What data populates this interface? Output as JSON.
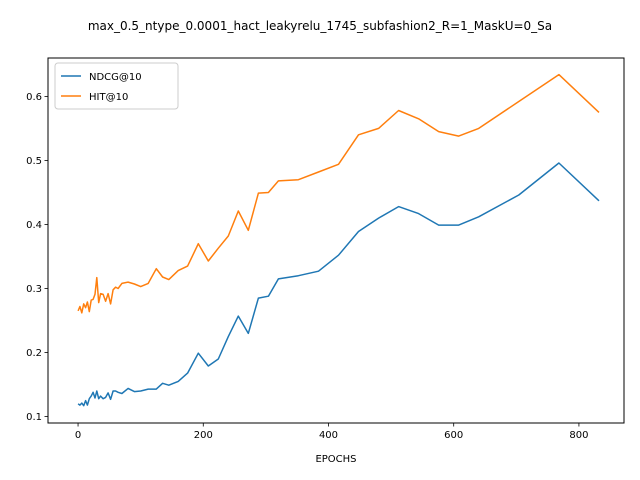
{
  "chart_data": {
    "type": "line",
    "title": "max_0.5_ntype_0.0001_hact_leakyrelu_1745_subfashion2_R=1_MaskU=0_Sa",
    "xlabel": "EPOCHS",
    "ylabel": "",
    "xlim": [
      -48,
      872
    ],
    "ylim": [
      0.09,
      0.66
    ],
    "xticks": [
      0,
      200,
      400,
      600,
      800
    ],
    "yticks": [
      0.1,
      0.2,
      0.3,
      0.4,
      0.5,
      0.6
    ],
    "grid": false,
    "legend_position": "top-left",
    "series": [
      {
        "name": "NDCG@10",
        "color": "#1f77b4",
        "x": [
          0,
          3,
          6,
          9,
          12,
          15,
          18,
          21,
          24,
          27,
          30,
          33,
          36,
          40,
          44,
          48,
          52,
          56,
          60,
          64,
          70,
          80,
          90,
          100,
          112,
          125,
          135,
          145,
          160,
          175,
          192,
          208,
          224,
          240,
          256,
          272,
          288,
          304,
          320,
          352,
          384,
          416,
          448,
          480,
          512,
          544,
          576,
          608,
          640,
          704,
          768,
          832
        ],
        "y": [
          0.12,
          0.118,
          0.121,
          0.117,
          0.125,
          0.118,
          0.128,
          0.132,
          0.138,
          0.129,
          0.14,
          0.128,
          0.132,
          0.128,
          0.13,
          0.137,
          0.127,
          0.14,
          0.14,
          0.138,
          0.136,
          0.144,
          0.139,
          0.14,
          0.143,
          0.143,
          0.152,
          0.149,
          0.155,
          0.168,
          0.199,
          0.179,
          0.19,
          0.225,
          0.257,
          0.23,
          0.285,
          0.288,
          0.315,
          0.32,
          0.327,
          0.352,
          0.389,
          0.41,
          0.428,
          0.417,
          0.399,
          0.399,
          0.412,
          0.446,
          0.496,
          0.437
        ]
      },
      {
        "name": "HIT@10",
        "color": "#ff7f0e",
        "x": [
          0,
          3,
          6,
          9,
          12,
          15,
          18,
          21,
          24,
          27,
          30,
          33,
          36,
          40,
          44,
          48,
          52,
          56,
          60,
          64,
          70,
          80,
          90,
          100,
          112,
          125,
          135,
          145,
          160,
          175,
          192,
          208,
          224,
          240,
          256,
          272,
          288,
          304,
          320,
          352,
          384,
          416,
          448,
          480,
          512,
          544,
          576,
          608,
          640,
          704,
          768,
          832
        ],
        "y": [
          0.265,
          0.272,
          0.262,
          0.276,
          0.27,
          0.279,
          0.264,
          0.282,
          0.283,
          0.291,
          0.317,
          0.278,
          0.292,
          0.291,
          0.28,
          0.292,
          0.276,
          0.298,
          0.302,
          0.3,
          0.308,
          0.31,
          0.307,
          0.303,
          0.308,
          0.331,
          0.318,
          0.314,
          0.328,
          0.335,
          0.37,
          0.343,
          0.363,
          0.382,
          0.421,
          0.391,
          0.449,
          0.45,
          0.468,
          0.47,
          0.482,
          0.494,
          0.54,
          0.55,
          0.578,
          0.565,
          0.545,
          0.538,
          0.55,
          0.592,
          0.634,
          0.575
        ]
      }
    ]
  }
}
